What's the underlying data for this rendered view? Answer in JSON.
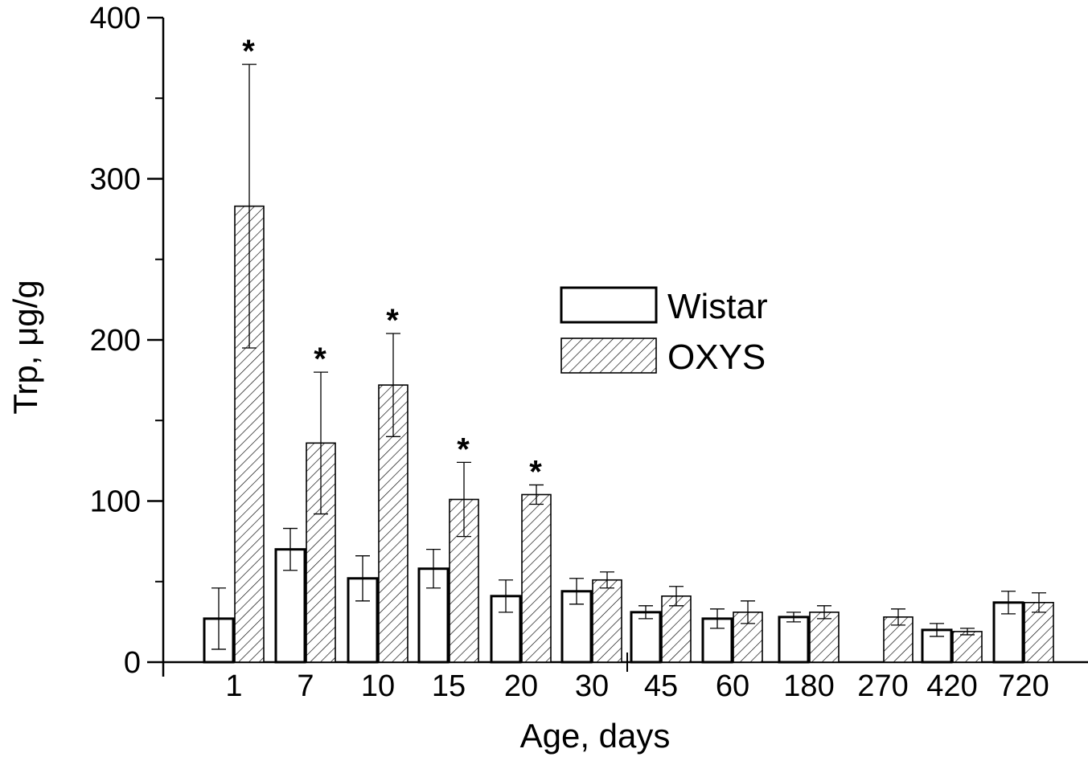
{
  "chart_data": {
    "type": "bar",
    "xlabel": "Age, days",
    "ylabel": "Trp, μg/g",
    "ylim": [
      0,
      400
    ],
    "yticks": [
      "0",
      "100",
      "200",
      "300",
      "400"
    ],
    "categories": [
      "1",
      "7",
      "10",
      "15",
      "20",
      "30",
      "45",
      "60",
      "180",
      "270",
      "420",
      "720"
    ],
    "series": [
      {
        "name": "Wistar",
        "pattern": "open",
        "values": [
          27,
          70,
          52,
          58,
          41,
          44,
          31,
          27,
          28,
          null,
          20,
          37
        ],
        "errors": [
          19,
          13,
          14,
          12,
          10,
          8,
          4,
          6,
          3,
          null,
          4,
          7
        ]
      },
      {
        "name": "OXYS",
        "pattern": "hatched",
        "values": [
          283,
          136,
          172,
          101,
          104,
          51,
          41,
          31,
          31,
          28,
          19,
          37
        ],
        "errors": [
          88,
          44,
          32,
          23,
          6,
          5,
          6,
          7,
          4,
          5,
          2,
          6
        ]
      }
    ],
    "significance_marker": "*",
    "significant_categories": [
      "1",
      "7",
      "10",
      "15",
      "20"
    ],
    "legend_position": "center-right",
    "colors": {
      "stroke": "#000000",
      "fill": "#ffffff"
    }
  }
}
